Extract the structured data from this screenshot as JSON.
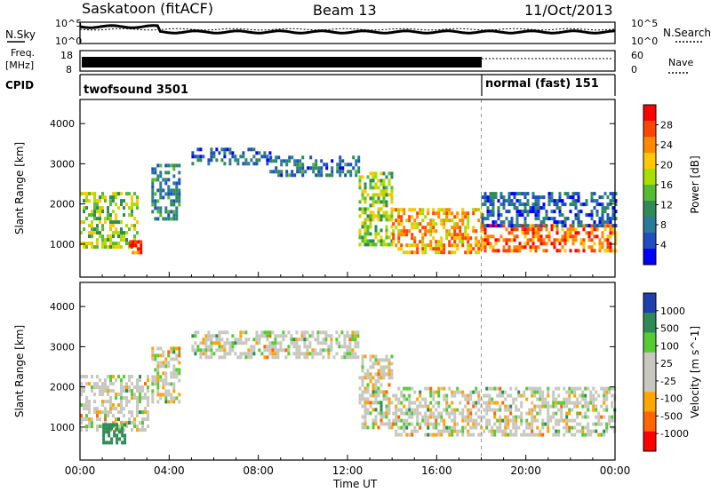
{
  "header": {
    "title": "Saskatoon (fitACF)",
    "beam": "Beam 13",
    "date": "11/Oct/2013"
  },
  "top_panels": {
    "nsky_label": "N.Sky",
    "nsearch_label": "N.Search",
    "nsky_ticks": [
      "10^5",
      "10^0"
    ],
    "nsearch_ticks": [
      "10^5",
      "10^0"
    ],
    "freq_label_1": "Freq.",
    "freq_label_2": "[MHz]",
    "freq_ticks": [
      "18",
      "8"
    ],
    "nave_label": "Nave",
    "nave_ticks": [
      "60",
      "0"
    ],
    "cpid_label": "CPID",
    "cpid_left": "twofsound 3501",
    "cpid_right": "normal (fast) 151"
  },
  "chart_data": [
    {
      "type": "heatmap",
      "title": "",
      "xlabel": "Time UT",
      "ylabel": "Slant Range [km]",
      "colorbar_label": "Power [dB]",
      "x_ticks": [
        "00:00",
        "04:00",
        "08:00",
        "12:00",
        "16:00",
        "20:00",
        "00:00"
      ],
      "xlim": [
        0,
        24
      ],
      "ylim": [
        180,
        4600
      ],
      "y_ticks": [
        1000,
        2000,
        3000,
        4000
      ],
      "colorbar_ticks": [
        "28",
        "24",
        "20",
        "16",
        "12",
        "8",
        "4"
      ],
      "colorbar_colors": [
        "#ff0000",
        "#ff4400",
        "#ff8800",
        "#ffc800",
        "#aadd00",
        "#55bb33",
        "#2e8b57",
        "#2a7a9a",
        "#1d4fc0",
        "#0000ff"
      ],
      "mode_change_hour": 18.0,
      "echo_regions": [
        {
          "t0": 0.0,
          "t1": 2.6,
          "r0": 900,
          "r1": 2300,
          "level": 16
        },
        {
          "t0": 2.2,
          "t1": 2.7,
          "r0": 800,
          "r1": 1100,
          "level": 26
        },
        {
          "t0": 3.2,
          "t1": 4.4,
          "r0": 1600,
          "r1": 3000,
          "level": 10
        },
        {
          "t0": 5.0,
          "t1": 8.5,
          "r0": 3000,
          "r1": 3400,
          "level": 8
        },
        {
          "t0": 8.5,
          "t1": 12.5,
          "r0": 2700,
          "r1": 3200,
          "level": 9
        },
        {
          "t0": 12.5,
          "t1": 14.0,
          "r0": 1000,
          "r1": 2800,
          "level": 16
        },
        {
          "t0": 14.0,
          "t1": 18.0,
          "r0": 800,
          "r1": 1900,
          "level": 22
        },
        {
          "t0": 18.0,
          "t1": 24.0,
          "r0": 800,
          "r1": 1500,
          "level": 24
        },
        {
          "t0": 18.0,
          "t1": 24.0,
          "r0": 1500,
          "r1": 2300,
          "level": 8
        }
      ]
    },
    {
      "type": "heatmap",
      "title": "",
      "xlabel": "Time UT",
      "ylabel": "Slant Range [km]",
      "colorbar_label": "Velocity [m s^-1]",
      "x_ticks": [
        "00:00",
        "04:00",
        "08:00",
        "12:00",
        "16:00",
        "20:00",
        "00:00"
      ],
      "xlim": [
        0,
        24
      ],
      "ylim": [
        180,
        4600
      ],
      "y_ticks": [
        1000,
        2000,
        3000,
        4000
      ],
      "colorbar_ticks": [
        "1000",
        "500",
        "100",
        "25",
        "-25",
        "-100",
        "-500",
        "-1000"
      ],
      "colorbar_colors": [
        "#1d3fb0",
        "#2e8b57",
        "#55cc33",
        "#c8c8c0",
        "#c8c8c0",
        "#ffa500",
        "#ff6600",
        "#ff0000"
      ],
      "mode_change_hour": 18.0,
      "echo_regions": [
        {
          "t0": 0.0,
          "t1": 3.0,
          "r0": 900,
          "r1": 2300,
          "velocity": 0
        },
        {
          "t0": 1.0,
          "t1": 2.0,
          "r0": 650,
          "r1": 1100,
          "velocity": 400
        },
        {
          "t0": 3.2,
          "t1": 4.4,
          "r0": 1600,
          "r1": 3000,
          "velocity": 0
        },
        {
          "t0": 5.0,
          "t1": 12.5,
          "r0": 2700,
          "r1": 3400,
          "velocity": 0
        },
        {
          "t0": 12.5,
          "t1": 14.0,
          "r0": 1000,
          "r1": 2800,
          "velocity": 0
        },
        {
          "t0": 14.0,
          "t1": 24.0,
          "r0": 800,
          "r1": 2000,
          "velocity": 0
        }
      ]
    }
  ]
}
